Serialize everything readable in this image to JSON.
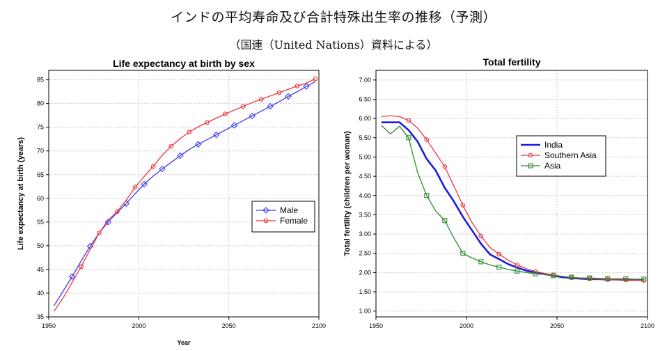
{
  "page": {
    "title": "インドの平均寿命及び合計特殊出生率の推移（予測）",
    "subtitle": "（国連（United Nations）資料による）"
  },
  "chart_data": [
    {
      "type": "line",
      "title": "Life expectancy at birth by sex",
      "xlabel": "Year",
      "ylabel": "Life expectancy at birth (years)",
      "xlim": [
        1950,
        2100
      ],
      "ylim": [
        35,
        87
      ],
      "xticks": [
        1950,
        2000,
        2050,
        2100
      ],
      "yticks": [
        35,
        40,
        45,
        50,
        55,
        60,
        65,
        70,
        75,
        80,
        85
      ],
      "grid": true,
      "legend_position": "right",
      "series": [
        {
          "name": "Male",
          "color": "#3b3bf0",
          "marker": "diamond",
          "x": [
            1953,
            1963,
            1968,
            1973,
            1978,
            1983,
            1988,
            1993,
            1998,
            2003,
            2008,
            2013,
            2018,
            2023,
            2028,
            2033,
            2038,
            2043,
            2048,
            2053,
            2058,
            2063,
            2068,
            2073,
            2078,
            2083,
            2088,
            2093,
            2098
          ],
          "y": [
            37.4,
            43.5,
            46.8,
            49.9,
            52.7,
            55.0,
            57.0,
            58.9,
            61.0,
            63.0,
            64.7,
            66.2,
            67.6,
            69.0,
            70.3,
            71.4,
            72.4,
            73.4,
            74.4,
            75.4,
            76.4,
            77.4,
            78.4,
            79.4,
            80.4,
            81.5,
            82.5,
            83.6,
            84.6
          ],
          "marker_x": [
            1963,
            1973,
            1983,
            1993,
            2003,
            2013,
            2023,
            2033,
            2043,
            2053,
            2063,
            2073,
            2083,
            2093
          ],
          "marker_y": [
            43.5,
            49.9,
            55.0,
            58.9,
            63.0,
            66.2,
            69.0,
            71.4,
            73.4,
            75.4,
            77.4,
            79.4,
            81.5,
            83.6
          ]
        },
        {
          "name": "Female",
          "color": "#e8383c",
          "marker": "circle",
          "x": [
            1953,
            1958,
            1963,
            1968,
            1973,
            1978,
            1983,
            1988,
            1993,
            1998,
            2003,
            2008,
            2013,
            2018,
            2023,
            2028,
            2033,
            2038,
            2043,
            2048,
            2053,
            2058,
            2063,
            2068,
            2073,
            2078,
            2083,
            2088,
            2093,
            2098
          ],
          "y": [
            36.2,
            39.0,
            42.3,
            45.6,
            49.2,
            52.7,
            55.4,
            57.2,
            59.6,
            62.4,
            64.6,
            66.7,
            69.1,
            71.0,
            72.6,
            74.0,
            75.1,
            76.0,
            76.9,
            77.8,
            78.6,
            79.4,
            80.2,
            80.9,
            81.6,
            82.3,
            83.0,
            83.7,
            84.3,
            85.2
          ],
          "marker_x": [
            1968,
            1978,
            1988,
            1998,
            2008,
            2018,
            2028,
            2038,
            2048,
            2058,
            2068,
            2078,
            2088,
            2098
          ],
          "marker_y": [
            45.6,
            52.7,
            57.2,
            62.4,
            66.7,
            71.0,
            74.0,
            76.0,
            77.8,
            79.4,
            80.9,
            82.3,
            83.7,
            85.2
          ]
        }
      ]
    },
    {
      "type": "line",
      "title": "Total fertility",
      "xlabel": "",
      "ylabel": "Total fertility (children per woman)",
      "xlim": [
        1950,
        2100
      ],
      "ylim": [
        0.85,
        7.25
      ],
      "xticks": [
        1950,
        2000,
        2050,
        2100
      ],
      "yticks": [
        "1.00",
        "1.50",
        "2.00",
        "2.50",
        "3.00",
        "3.50",
        "4.00",
        "4.50",
        "5.00",
        "5.50",
        "6.00",
        "6.50",
        "7.00"
      ],
      "grid": true,
      "legend_position": "center",
      "series": [
        {
          "name": "India",
          "color": "#1a1ae6",
          "marker": "none",
          "x": [
            1953,
            1958,
            1963,
            1968,
            1973,
            1978,
            1983,
            1988,
            1993,
            1998,
            2003,
            2008,
            2013,
            2018,
            2023,
            2028,
            2033,
            2038,
            2043,
            2048,
            2053,
            2058,
            2063,
            2068,
            2073,
            2078,
            2083,
            2088,
            2093,
            2098
          ],
          "y": [
            5.9,
            5.9,
            5.9,
            5.7,
            5.4,
            4.95,
            4.65,
            4.2,
            3.85,
            3.45,
            3.1,
            2.75,
            2.47,
            2.35,
            2.22,
            2.13,
            2.05,
            2.0,
            1.96,
            1.92,
            1.88,
            1.86,
            1.84,
            1.83,
            1.83,
            1.82,
            1.82,
            1.81,
            1.81,
            1.81
          ]
        },
        {
          "name": "Southern Asia",
          "color": "#e8383c",
          "marker": "circle",
          "x": [
            1953,
            1958,
            1963,
            1968,
            1973,
            1978,
            1983,
            1988,
            1993,
            1998,
            2003,
            2008,
            2013,
            2018,
            2023,
            2028,
            2033,
            2038,
            2043,
            2048,
            2053,
            2058,
            2063,
            2068,
            2073,
            2078,
            2083,
            2088,
            2093,
            2098
          ],
          "y": [
            6.05,
            6.07,
            6.05,
            5.95,
            5.75,
            5.45,
            5.1,
            4.75,
            4.25,
            3.75,
            3.3,
            2.95,
            2.65,
            2.48,
            2.32,
            2.2,
            2.1,
            2.03,
            1.98,
            1.94,
            1.9,
            1.87,
            1.85,
            1.84,
            1.83,
            1.82,
            1.81,
            1.81,
            1.8,
            1.8
          ],
          "marker_x": [
            1968,
            1978,
            1988,
            1998,
            2008,
            2018,
            2028,
            2038,
            2048,
            2058,
            2068,
            2078,
            2088,
            2098
          ],
          "marker_y": [
            5.95,
            5.45,
            4.75,
            3.75,
            2.95,
            2.48,
            2.2,
            2.03,
            1.94,
            1.87,
            1.84,
            1.82,
            1.81,
            1.8
          ]
        },
        {
          "name": "Asia",
          "color": "#2e8b2e",
          "marker": "square",
          "x": [
            1953,
            1958,
            1963,
            1968,
            1973,
            1978,
            1983,
            1988,
            1993,
            1998,
            2003,
            2008,
            2013,
            2018,
            2023,
            2028,
            2033,
            2038,
            2043,
            2048,
            2053,
            2058,
            2063,
            2068,
            2073,
            2078,
            2083,
            2088,
            2093,
            2098
          ],
          "y": [
            5.82,
            5.6,
            5.8,
            5.5,
            4.6,
            4.0,
            3.6,
            3.35,
            2.9,
            2.5,
            2.38,
            2.28,
            2.2,
            2.14,
            2.08,
            2.04,
            2.0,
            1.97,
            1.95,
            1.92,
            1.9,
            1.88,
            1.86,
            1.86,
            1.85,
            1.84,
            1.84,
            1.84,
            1.83,
            1.83
          ],
          "marker_x": [
            1968,
            1978,
            1988,
            1998,
            2008,
            2018,
            2028,
            2038,
            2048,
            2058,
            2068,
            2078,
            2088,
            2098
          ],
          "marker_y": [
            5.5,
            4.0,
            3.35,
            2.5,
            2.28,
            2.14,
            2.04,
            1.97,
            1.92,
            1.88,
            1.86,
            1.84,
            1.84,
            1.83
          ]
        }
      ]
    }
  ]
}
